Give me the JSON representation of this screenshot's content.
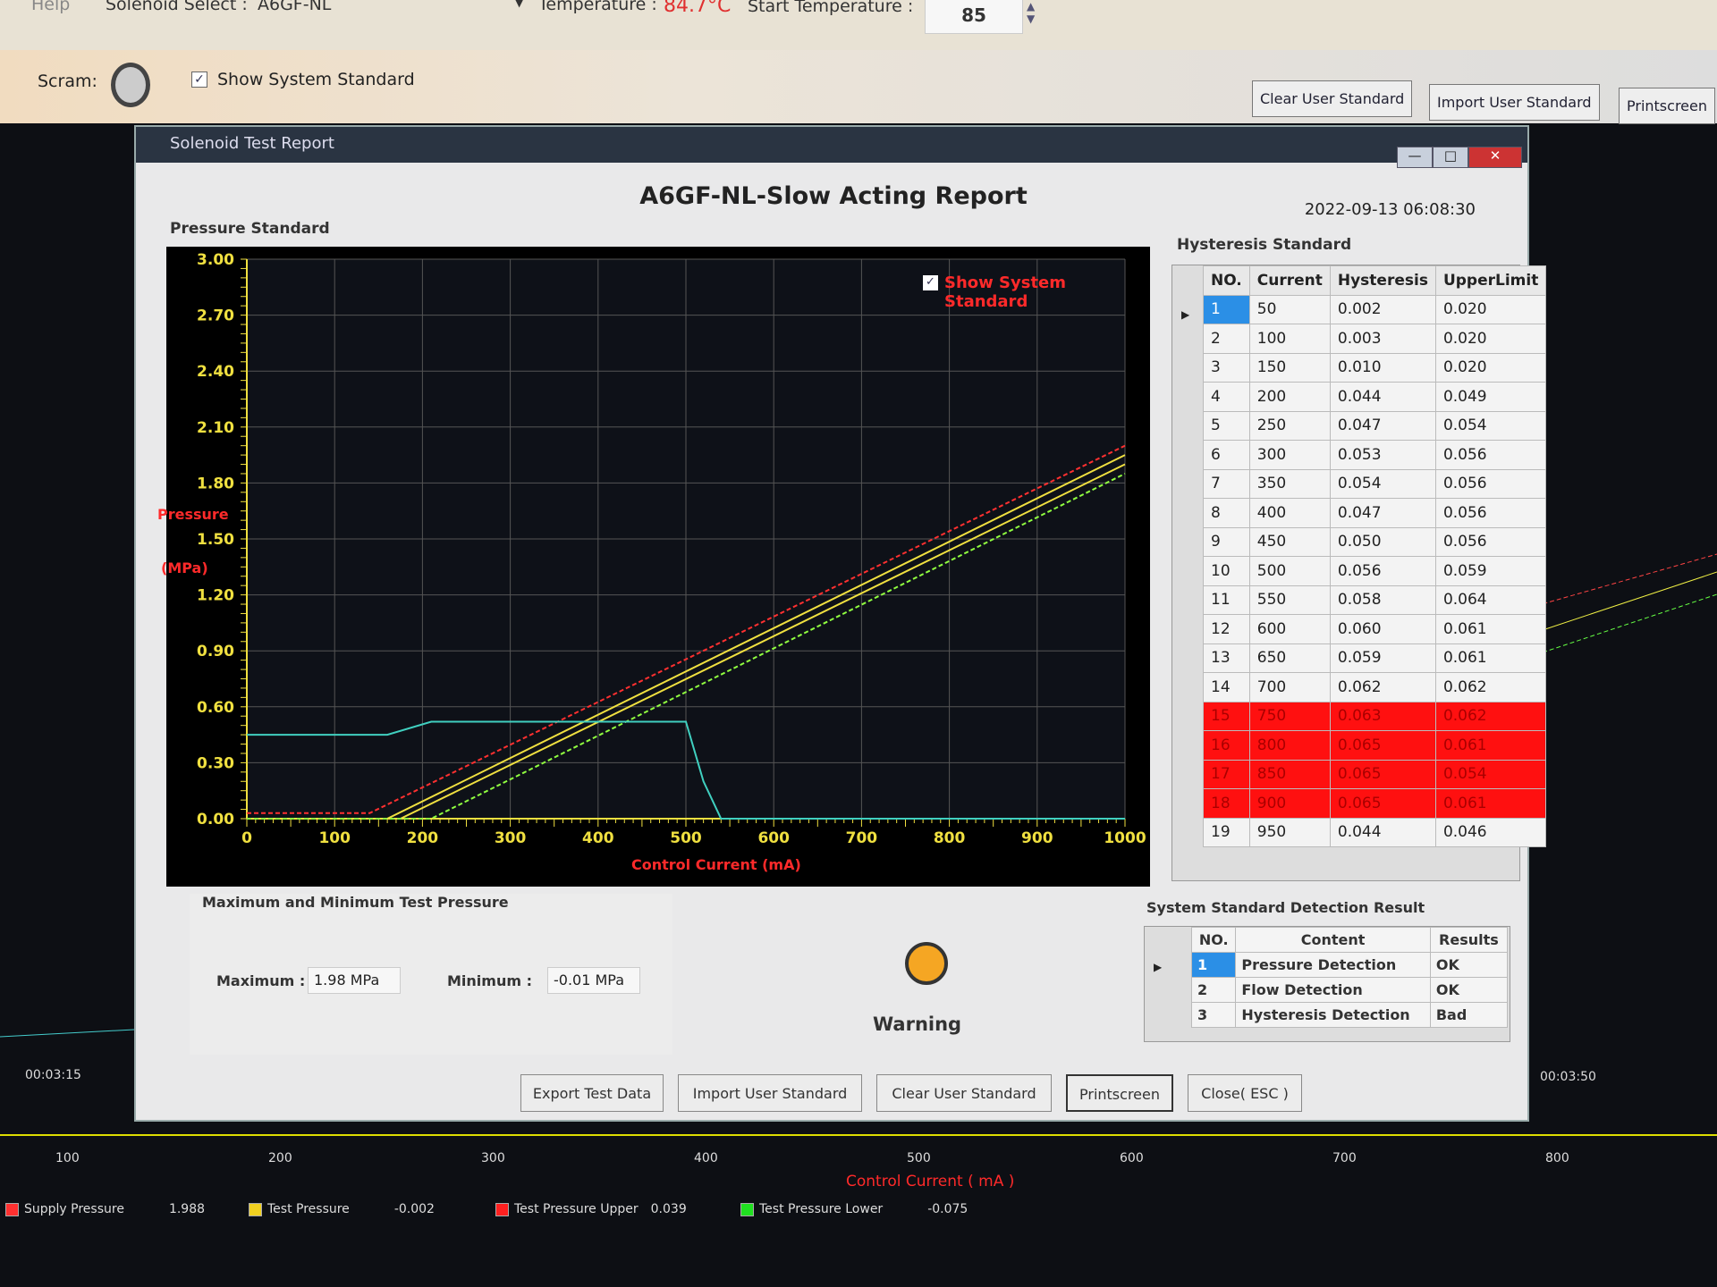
{
  "topbar": {
    "help": "Help",
    "solenoid_label": "Solenoid Select :",
    "solenoid_value": "A6GF-NL",
    "temperature_label": "Temperature :",
    "temperature_value": "84.7°C",
    "start_temp_label": "Start Temperature :",
    "start_temp_value": "85"
  },
  "toolbar": {
    "scram_label": "Scram:",
    "show_std_label": "Show System Standard",
    "show_std_checked": true,
    "buttons": [
      "Clear User Standard",
      "Import User Standard",
      "Printscreen"
    ]
  },
  "dialog": {
    "title": "Solenoid Test Report",
    "report_title": "A6GF-NL-Slow Acting Report",
    "date": "2022-09-13 06:08:30",
    "pressure_section": "Pressure Standard",
    "hysteresis_section": "Hysteresis Standard",
    "maxmin_section": "Maximum and Minimum Test Pressure",
    "max_label": "Maximum :",
    "max_value": "1.98 MPa",
    "min_label": "Minimum :",
    "min_value": "-0.01 MPa",
    "warning_label": "Warning",
    "warning_color": "#f5a623",
    "detection_section": "System Standard Detection Result",
    "buttons": [
      "Export Test Data",
      "Import User Standard",
      "Clear User Standard",
      "Printscreen",
      "Close( ESC )"
    ]
  },
  "hysteresis": {
    "headers": [
      "NO.",
      "Current",
      "Hysteresis",
      "UpperLimit"
    ],
    "rows": [
      [
        "1",
        "50",
        "0.002",
        "0.020"
      ],
      [
        "2",
        "100",
        "0.003",
        "0.020"
      ],
      [
        "3",
        "150",
        "0.010",
        "0.020"
      ],
      [
        "4",
        "200",
        "0.044",
        "0.049"
      ],
      [
        "5",
        "250",
        "0.047",
        "0.054"
      ],
      [
        "6",
        "300",
        "0.053",
        "0.056"
      ],
      [
        "7",
        "350",
        "0.054",
        "0.056"
      ],
      [
        "8",
        "400",
        "0.047",
        "0.056"
      ],
      [
        "9",
        "450",
        "0.050",
        "0.056"
      ],
      [
        "10",
        "500",
        "0.056",
        "0.059"
      ],
      [
        "11",
        "550",
        "0.058",
        "0.064"
      ],
      [
        "12",
        "600",
        "0.060",
        "0.061"
      ],
      [
        "13",
        "650",
        "0.059",
        "0.061"
      ],
      [
        "14",
        "700",
        "0.062",
        "0.062"
      ],
      [
        "15",
        "750",
        "0.063",
        "0.062"
      ],
      [
        "16",
        "800",
        "0.065",
        "0.061"
      ],
      [
        "17",
        "850",
        "0.065",
        "0.054"
      ],
      [
        "18",
        "900",
        "0.065",
        "0.061"
      ],
      [
        "19",
        "950",
        "0.044",
        "0.046"
      ]
    ],
    "failed_rows": [
      15,
      16,
      17,
      18
    ],
    "fail_color": "#ff1010"
  },
  "detection": {
    "headers": [
      "NO.",
      "Content",
      "Results"
    ],
    "rows": [
      [
        "1",
        "Pressure Detection",
        "OK"
      ],
      [
        "2",
        "Flow Detection",
        "OK"
      ],
      [
        "3",
        "Hysteresis Detection",
        "Bad"
      ]
    ]
  },
  "chart_data": {
    "type": "line",
    "ylabel_1": "Pressure",
    "ylabel_2": "(MPa)",
    "xlabel": "Control Current (mA)",
    "xlim": [
      0,
      1000
    ],
    "ylim": [
      0,
      3
    ],
    "yticks": [
      "0.00",
      "0.30",
      "0.60",
      "0.90",
      "1.20",
      "1.50",
      "1.80",
      "2.10",
      "2.40",
      "2.70",
      "3.00"
    ],
    "xticks": [
      "0",
      "100",
      "200",
      "300",
      "400",
      "500",
      "600",
      "700",
      "800",
      "900",
      "1000"
    ],
    "grid": true,
    "legend_checkbox": "Show System Standard",
    "series": [
      {
        "color": "#ff3030",
        "dashed": true,
        "x": [
          0,
          140,
          1000
        ],
        "y": [
          0.03,
          0.03,
          2.0
        ]
      },
      {
        "color": "#f0e040",
        "dashed": false,
        "x": [
          0,
          160,
          1000
        ],
        "y": [
          0,
          0,
          1.95
        ]
      },
      {
        "color": "#f0e040",
        "dashed": false,
        "x": [
          0,
          175,
          1000
        ],
        "y": [
          0,
          0,
          1.9
        ]
      },
      {
        "color": "#90ff40",
        "dashed": true,
        "x": [
          0,
          210,
          1000
        ],
        "y": [
          0,
          0,
          1.85
        ]
      },
      {
        "color": "#40d0c0",
        "dashed": false,
        "x": [
          0,
          160,
          210,
          500,
          520,
          540,
          1000
        ],
        "y": [
          0.45,
          0.45,
          0.52,
          0.52,
          0.2,
          0,
          0
        ]
      }
    ]
  },
  "background_chart": {
    "time_left": "00:03:15",
    "time_right": "00:03:50",
    "xticks": [
      "100",
      "200",
      "300",
      "400",
      "500",
      "600",
      "700",
      "800"
    ],
    "xlabel": "Control Current ( mA )",
    "legend": [
      {
        "name": "Supply Pressure",
        "value": "1.988",
        "color": "#ff3030"
      },
      {
        "name": "Test Pressure",
        "value": "-0.002",
        "color": "#f0d020"
      },
      {
        "name": "Test Pressure Upper",
        "value": "0.039",
        "color": "#ff2020"
      },
      {
        "name": "Test Pressure Lower",
        "value": "-0.075",
        "color": "#20e020"
      }
    ]
  }
}
